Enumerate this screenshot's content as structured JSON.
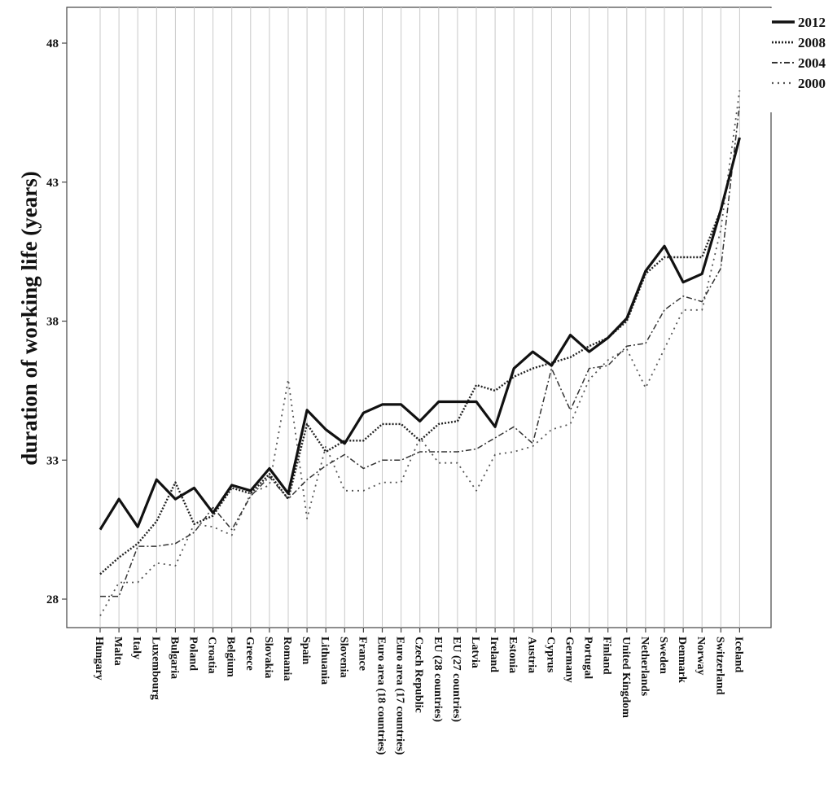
{
  "chart_data": {
    "type": "line",
    "ylabel": "duration of working life (years)",
    "xlabel": "",
    "ylim": [
      27.5,
      49.3
    ],
    "yticks": [
      28,
      33,
      38,
      43,
      48
    ],
    "grid": "vertical lines at each category",
    "legend_position": "top-right",
    "categories": [
      "Hungary",
      "Malta",
      "Italy",
      "Luxembourg",
      "Bulgaria",
      "Poland",
      "Croatia",
      "Belgium",
      "Greece",
      "Slovakia",
      "Romania",
      "Spain",
      "Lithuania",
      "Slovenia",
      "France",
      "Euro area (18 countries)",
      "Euro area (17 countries)",
      "Czech Republic",
      "EU (28 countries)",
      "EU (27 countries)",
      "Latvia",
      "Ireland",
      "Estonia",
      "Austria",
      "Cyprus",
      "Germany",
      "Portugal",
      "Finland",
      "United Kingdom",
      "Netherlands",
      "Sweden",
      "Denmark",
      "Norway",
      "Switzerland",
      "Iceland"
    ],
    "series": [
      {
        "name": "2012",
        "style": "solid",
        "values": [
          30.5,
          31.6,
          30.6,
          32.3,
          31.6,
          32.0,
          31.1,
          32.1,
          31.9,
          32.7,
          31.8,
          34.8,
          34.1,
          33.6,
          34.7,
          35.0,
          35.0,
          34.4,
          35.1,
          35.1,
          35.1,
          34.2,
          36.3,
          36.9,
          36.4,
          37.5,
          36.9,
          37.4,
          38.1,
          39.8,
          40.7,
          39.4,
          39.7,
          42.0,
          44.6
        ]
      },
      {
        "name": "2008",
        "style": "dotted",
        "values": [
          28.9,
          29.5,
          30.0,
          30.8,
          32.2,
          30.7,
          31.0,
          32.0,
          31.8,
          32.5,
          31.6,
          34.3,
          33.3,
          33.7,
          33.7,
          34.3,
          34.3,
          33.7,
          34.3,
          34.4,
          35.7,
          35.5,
          36.0,
          36.3,
          36.5,
          36.7,
          37.1,
          37.4,
          38.0,
          39.7,
          40.3,
          40.3,
          40.3,
          42.0,
          44.6
        ]
      },
      {
        "name": "2004",
        "style": "dashdot",
        "values": [
          28.1,
          28.1,
          29.9,
          29.9,
          30.0,
          30.4,
          31.3,
          30.5,
          31.7,
          32.4,
          31.6,
          32.3,
          32.8,
          33.2,
          32.7,
          33.0,
          33.0,
          33.3,
          33.3,
          33.3,
          33.4,
          33.8,
          34.2,
          33.6,
          36.3,
          34.8,
          36.3,
          36.4,
          37.1,
          37.2,
          38.4,
          38.9,
          38.7,
          39.9,
          45.8
        ]
      },
      {
        "name": "2000",
        "style": "dotted-sparse",
        "values": [
          27.4,
          28.6,
          28.6,
          29.3,
          29.2,
          30.7,
          30.6,
          30.3,
          31.8,
          32.1,
          35.9,
          30.9,
          33.5,
          31.9,
          31.9,
          32.2,
          32.2,
          33.8,
          32.9,
          32.9,
          31.9,
          33.2,
          33.3,
          33.5,
          34.1,
          34.3,
          35.9,
          36.6,
          37.0,
          35.6,
          37.0,
          38.4,
          38.4,
          41.3,
          46.3
        ]
      }
    ]
  },
  "legend": {
    "items": [
      {
        "label": "2012",
        "style": "solid"
      },
      {
        "label": "2008",
        "style": "dotted"
      },
      {
        "label": "2004",
        "style": "dashdot"
      },
      {
        "label": "2000",
        "style": "dotted-sparse"
      }
    ]
  }
}
